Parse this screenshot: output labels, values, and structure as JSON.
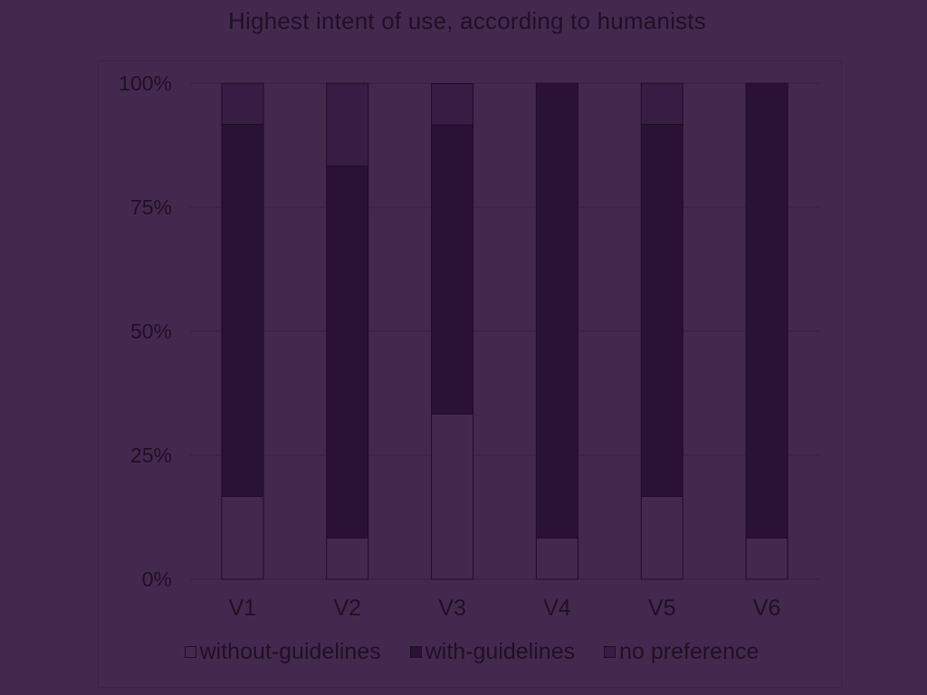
{
  "chart_data": {
    "type": "bar",
    "stacked": "percent",
    "title": "Highest intent of use, according to humanists",
    "categories": [
      "V1",
      "V2",
      "V3",
      "V4",
      "V5",
      "V6"
    ],
    "series": [
      {
        "name": "without-guidelines",
        "color": "#44294f",
        "values": [
          16.7,
          8.3,
          33.3,
          8.3,
          16.7,
          8.3
        ]
      },
      {
        "name": "with-guidelines",
        "color": "#2a1237",
        "values": [
          75.0,
          75.0,
          58.3,
          91.7,
          75.0,
          91.7
        ]
      },
      {
        "name": "no preference",
        "color": "#371d43",
        "values": [
          8.3,
          16.7,
          8.3,
          0,
          8.3,
          0
        ]
      }
    ],
    "yticks": [
      "0%",
      "25%",
      "50%",
      "75%",
      "100%"
    ],
    "ylim": [
      0,
      100
    ],
    "grid": true,
    "legend": "bottom"
  }
}
